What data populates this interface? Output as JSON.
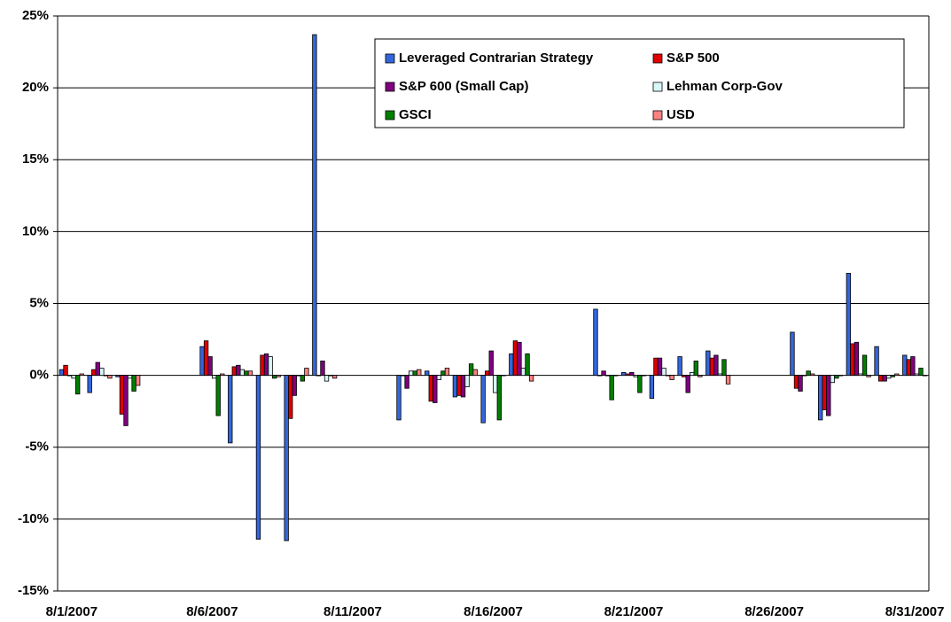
{
  "chart_data": {
    "type": "bar",
    "x": [
      "8/1/2007",
      "8/2/2007",
      "8/3/2007",
      "8/6/2007",
      "8/7/2007",
      "8/8/2007",
      "8/9/2007",
      "8/10/2007",
      "8/13/2007",
      "8/14/2007",
      "8/15/2007",
      "8/16/2007",
      "8/17/2007",
      "8/20/2007",
      "8/21/2007",
      "8/22/2007",
      "8/23/2007",
      "8/24/2007",
      "8/27/2007",
      "8/28/2007",
      "8/29/2007",
      "8/30/2007",
      "8/31/2007"
    ],
    "xlim": [
      "8/1/2007",
      "8/31/2007"
    ],
    "xticks": [
      "8/1/2007",
      "8/6/2007",
      "8/11/2007",
      "8/16/2007",
      "8/21/2007",
      "8/26/2007",
      "8/31/2007"
    ],
    "ylim": [
      -15,
      25
    ],
    "yticks": [
      {
        "value": -15,
        "label": "-15%"
      },
      {
        "value": -10,
        "label": "-10%"
      },
      {
        "value": -5,
        "label": "-5%"
      },
      {
        "value": 0,
        "label": "0%"
      },
      {
        "value": 5,
        "label": "5%"
      },
      {
        "value": 10,
        "label": "10%"
      },
      {
        "value": 15,
        "label": "15%"
      },
      {
        "value": 20,
        "label": "20%"
      },
      {
        "value": 25,
        "label": "25%"
      }
    ],
    "grid": true,
    "legend": "upper-right",
    "series": [
      {
        "name": "Leveraged Contrarian Strategy",
        "color": "#3366dd",
        "values": [
          0.4,
          -1.2,
          -0.1,
          2.0,
          -4.7,
          -11.4,
          -11.5,
          23.7,
          -3.1,
          0.3,
          -1.5,
          -3.3,
          1.5,
          4.6,
          0.2,
          -1.6,
          1.3,
          1.7,
          3.0,
          -3.1,
          7.1,
          2.0,
          1.4
        ]
      },
      {
        "name": "S&P 500",
        "color": "#e00000",
        "values": [
          0.7,
          0.4,
          -2.7,
          2.4,
          0.6,
          1.4,
          -3.0,
          0,
          0,
          -1.8,
          -1.4,
          0.3,
          2.4,
          0,
          0.1,
          1.2,
          -0.1,
          1.2,
          -0.9,
          -2.4,
          2.2,
          -0.4,
          1.1
        ]
      },
      {
        "name": "S&P 600 (Small Cap)",
        "color": "#800080",
        "values": [
          0,
          0.9,
          -3.5,
          1.3,
          0.7,
          1.5,
          -1.4,
          1.0,
          -0.9,
          -1.9,
          -1.5,
          1.7,
          2.3,
          0.3,
          0.2,
          1.2,
          -1.2,
          1.4,
          -1.1,
          -2.8,
          2.3,
          -0.4,
          1.3
        ]
      },
      {
        "name": "Lehman Corp-Gov",
        "color": "#d8f8f8",
        "values": [
          -0.2,
          0.5,
          -0.2,
          -0.2,
          0.4,
          1.3,
          0,
          -0.4,
          0.3,
          -0.3,
          -0.8,
          -1.2,
          0.5,
          0,
          -0.1,
          0.5,
          0.2,
          0.1,
          0,
          -0.5,
          0.1,
          -0.2,
          0.1
        ]
      },
      {
        "name": "GSCI",
        "color": "#008000",
        "values": [
          -1.3,
          0,
          -1.1,
          -2.8,
          0.3,
          -0.2,
          -0.4,
          0,
          0.3,
          0.3,
          0.8,
          -3.1,
          1.5,
          -1.7,
          -1.2,
          0,
          1.0,
          1.1,
          0.3,
          -0.2,
          1.4,
          -0.1,
          0.5
        ]
      },
      {
        "name": "USD",
        "color": "#ff8080",
        "values": [
          0.1,
          -0.2,
          -0.7,
          0.1,
          0.3,
          -0.1,
          0.5,
          -0.2,
          0.4,
          0.5,
          0.4,
          0,
          -0.4,
          0,
          0,
          -0.3,
          -0.1,
          -0.6,
          0.1,
          0,
          -0.1,
          0.1,
          0
        ]
      }
    ]
  }
}
